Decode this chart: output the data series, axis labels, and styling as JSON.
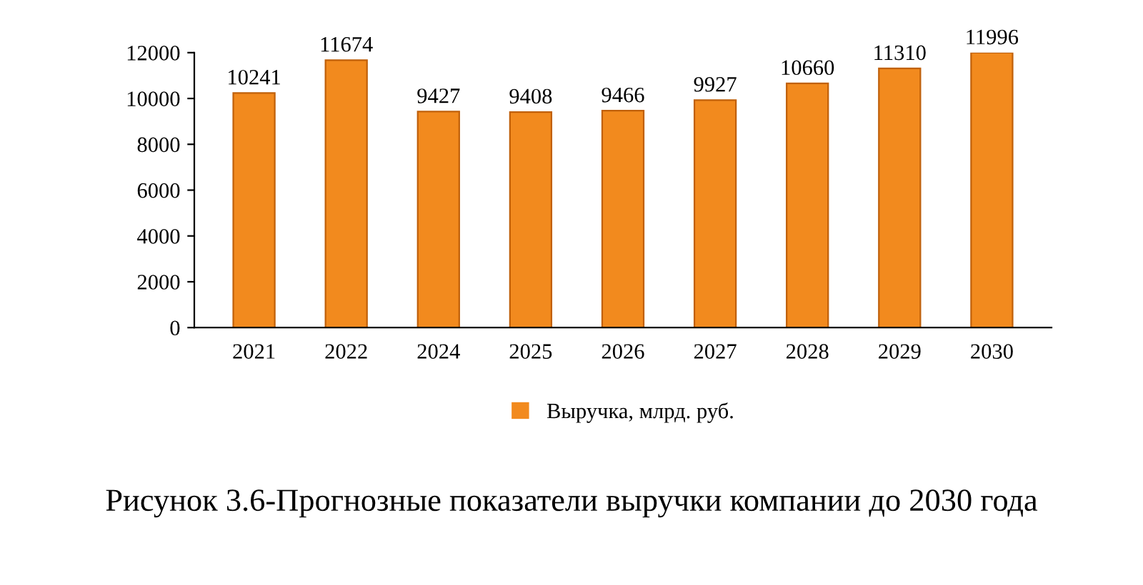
{
  "chart_data": {
    "type": "bar",
    "categories": [
      "2021",
      "2022",
      "2024",
      "2025",
      "2026",
      "2027",
      "2028",
      "2029",
      "2030"
    ],
    "series": [
      {
        "name": "Выручка, млрд. руб.",
        "color": "#f28a1e",
        "values": [
          10241,
          11674,
          9427,
          9408,
          9466,
          9927,
          10660,
          11310,
          11996
        ]
      }
    ],
    "ylim": [
      0,
      12000
    ],
    "yticks": [
      0,
      2000,
      4000,
      6000,
      8000,
      10000,
      12000
    ],
    "data_labels": true,
    "grid": false,
    "legend": "bottom",
    "annotations": [
      "Рисунок 3.6-Прогнозные показатели выручки компании до 2030 года"
    ]
  }
}
